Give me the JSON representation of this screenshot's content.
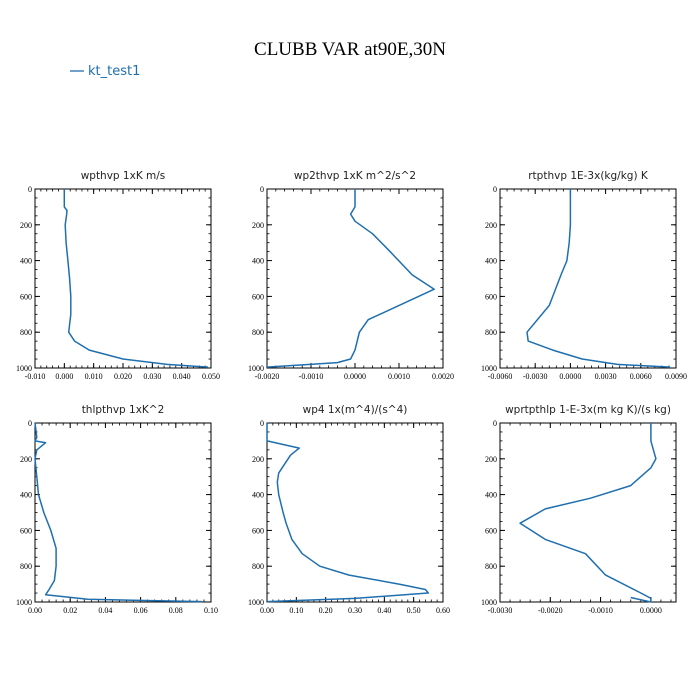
{
  "page_title": "CLUBB VAR at90E,30N",
  "legend": {
    "label": "kt_test1",
    "color": "#1f6fae"
  },
  "line_color": "#1f6fae",
  "chart_data": [
    {
      "type": "line",
      "title": "wpthvp   1xK  m/s",
      "xlim": [
        -0.01,
        0.05
      ],
      "ylim": [
        1000,
        0
      ],
      "y_inverted": true,
      "xticks": [
        -0.01,
        0.0,
        0.01,
        0.02,
        0.03,
        0.04,
        0.05
      ],
      "xtick_labels": [
        "-0.010",
        "0.000",
        "0.010",
        "0.020",
        "0.030",
        "0.040",
        "0.050"
      ],
      "yticks": [
        0,
        200,
        400,
        600,
        800,
        1000
      ],
      "ytick_labels": [
        "0",
        "200",
        "400",
        "600",
        "800",
        "1000"
      ],
      "series": [
        {
          "name": "kt_test1",
          "x": [
            0.0,
            0.0,
            0.0009,
            0.0008,
            0.0003,
            0.0006,
            0.0012,
            0.0018,
            0.0022,
            0.0022,
            0.0015,
            0.0035,
            0.0085,
            0.02,
            0.035,
            0.049
          ],
          "y": [
            0,
            100,
            120,
            140,
            200,
            300,
            400,
            500,
            600,
            700,
            800,
            850,
            900,
            950,
            980,
            995
          ]
        }
      ]
    },
    {
      "type": "line",
      "title": "wp2thvp   1xK  m^2/s^2",
      "xlim": [
        -0.002,
        0.002
      ],
      "ylim": [
        1000,
        0
      ],
      "y_inverted": true,
      "xticks": [
        -0.002,
        -0.001,
        0.0,
        0.001,
        0.002
      ],
      "xtick_labels": [
        "-0.0020",
        "-0.0010",
        "0.0000",
        "0.0010",
        "0.0020"
      ],
      "yticks": [
        0,
        200,
        400,
        600,
        800,
        1000
      ],
      "ytick_labels": [
        "0",
        "200",
        "400",
        "600",
        "800",
        "1000"
      ],
      "series": [
        {
          "name": "kt_test1",
          "x": [
            0.0,
            0.0,
            -0.0001,
            0.0,
            0.0004,
            0.0008,
            0.0013,
            0.0018,
            0.0003,
            0.0001,
            0.0,
            -0.0001,
            -0.0004,
            -0.002
          ],
          "y": [
            0,
            100,
            140,
            180,
            250,
            350,
            480,
            560,
            730,
            800,
            900,
            950,
            970,
            995
          ]
        }
      ]
    },
    {
      "type": "line",
      "title": "rtpthvp   1E-3x(kg/kg)  K",
      "xlim": [
        -0.006,
        0.009
      ],
      "ylim": [
        1000,
        0
      ],
      "y_inverted": true,
      "xticks": [
        -0.006,
        -0.003,
        0.0,
        0.003,
        0.006,
        0.009
      ],
      "xtick_labels": [
        "-0.0060",
        "-0.0030",
        "0.0000",
        "0.0030",
        "0.0060",
        "0.0090"
      ],
      "yticks": [
        0,
        200,
        400,
        600,
        800,
        1000
      ],
      "ytick_labels": [
        "0",
        "200",
        "400",
        "600",
        "800",
        "1000"
      ],
      "series": [
        {
          "name": "kt_test1",
          "x": [
            0.0,
            0.0,
            0.0,
            -0.0001,
            -0.0003,
            -0.0008,
            -0.0018,
            -0.0037,
            -0.0036,
            -0.0015,
            0.001,
            0.004,
            0.0085
          ],
          "y": [
            0,
            100,
            200,
            300,
            400,
            480,
            650,
            800,
            850,
            900,
            950,
            980,
            995
          ]
        }
      ]
    },
    {
      "type": "line",
      "title": "thlpthvp   1xK^2",
      "xlim": [
        0.0,
        0.1
      ],
      "ylim": [
        1000,
        0
      ],
      "y_inverted": true,
      "xticks": [
        0.0,
        0.02,
        0.04,
        0.06,
        0.08,
        0.1
      ],
      "xtick_labels": [
        "0.00",
        "0.02",
        "0.04",
        "0.06",
        "0.08",
        "0.10"
      ],
      "yticks": [
        0,
        200,
        400,
        600,
        800,
        1000
      ],
      "ytick_labels": [
        "0",
        "200",
        "400",
        "600",
        "800",
        "1000"
      ],
      "series": [
        {
          "name": "kt_test1",
          "x": [
            0.0,
            0.001,
            0.0,
            0.006,
            0.001,
            0.0,
            0.001,
            0.002,
            0.005,
            0.009,
            0.012,
            0.012,
            0.011,
            0.008,
            0.006,
            0.03,
            0.095
          ],
          "y": [
            0,
            80,
            100,
            110,
            150,
            200,
            300,
            400,
            500,
            600,
            700,
            800,
            880,
            930,
            960,
            985,
            998
          ]
        }
      ]
    },
    {
      "type": "line",
      "title": "wp4   1x(m^4)/(s^4)",
      "xlim": [
        0.0,
        0.6
      ],
      "ylim": [
        1000,
        0
      ],
      "y_inverted": true,
      "xticks": [
        0.0,
        0.1,
        0.2,
        0.3,
        0.4,
        0.5,
        0.6
      ],
      "xtick_labels": [
        "0.00",
        "0.10",
        "0.20",
        "0.30",
        "0.40",
        "0.50",
        "0.60"
      ],
      "yticks": [
        0,
        200,
        400,
        600,
        800,
        1000
      ],
      "ytick_labels": [
        "0",
        "200",
        "400",
        "600",
        "800",
        "1000"
      ],
      "series": [
        {
          "name": "kt_test1",
          "x": [
            0.0,
            0.0,
            0.11,
            0.08,
            0.04,
            0.035,
            0.04,
            0.055,
            0.065,
            0.085,
            0.12,
            0.18,
            0.28,
            0.45,
            0.54,
            0.55,
            0.3,
            0.0
          ],
          "y": [
            0,
            100,
            140,
            180,
            280,
            330,
            400,
            500,
            560,
            650,
            730,
            800,
            850,
            900,
            930,
            950,
            980,
            998
          ]
        }
      ]
    },
    {
      "type": "line",
      "title": "wprtpthlp   1-E-3x(m  kg K)/(s kg)",
      "xlim": [
        -0.003,
        0.0005
      ],
      "ylim": [
        1000,
        0
      ],
      "y_inverted": true,
      "xticks": [
        -0.003,
        -0.002,
        -0.001,
        0.0
      ],
      "xtick_labels": [
        "-0.0030",
        "-0.0020",
        "-0.0010",
        "0.0000"
      ],
      "yticks": [
        0,
        200,
        400,
        600,
        800,
        1000
      ],
      "ytick_labels": [
        "0",
        "200",
        "400",
        "600",
        "800",
        "1000"
      ],
      "series": [
        {
          "name": "kt_test1",
          "x": [
            0.0,
            0.0,
            0.0001,
            0.0,
            -0.0004,
            -0.0012,
            -0.0021,
            -0.0026,
            -0.0021,
            -0.0013,
            -0.0009,
            -0.0002,
            0.0,
            0.0,
            -0.0004
          ],
          "y": [
            0,
            100,
            200,
            250,
            350,
            420,
            480,
            560,
            650,
            730,
            850,
            950,
            980,
            1000,
            975
          ]
        }
      ]
    }
  ]
}
